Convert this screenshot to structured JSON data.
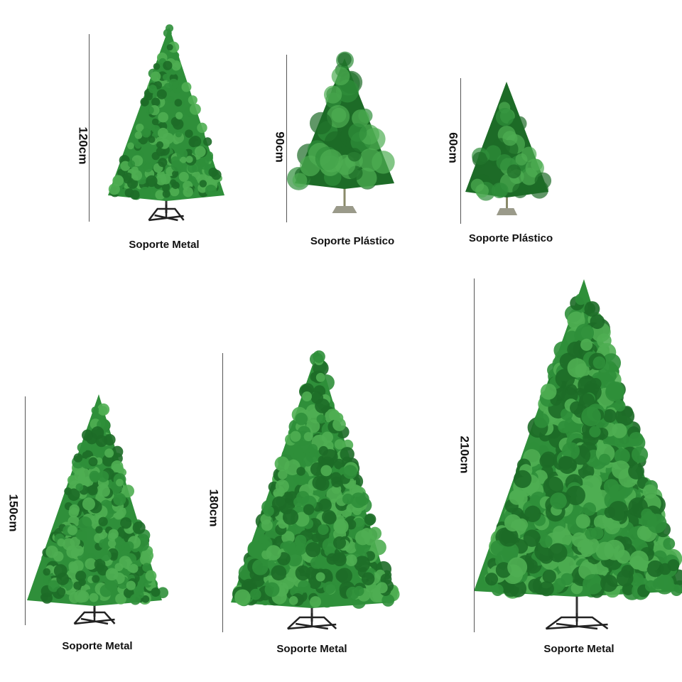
{
  "products": [
    {
      "height": "120cm",
      "stand": "Soporte Metal"
    },
    {
      "height": "90cm",
      "stand": "Soporte Plástico"
    },
    {
      "height": "60cm",
      "stand": "Soporte Plástico"
    },
    {
      "height": "150cm",
      "stand": "Soporte Metal"
    },
    {
      "height": "180cm",
      "stand": "Soporte Metal"
    },
    {
      "height": "210cm",
      "stand": "Soporte Metal"
    }
  ],
  "colors": {
    "foliage": "#2f8f3a",
    "foliage_dark": "#1d6b27",
    "foliage_light": "#4fae52",
    "metal_stand": "#222222",
    "plastic_stand": "#9a9a8a"
  }
}
